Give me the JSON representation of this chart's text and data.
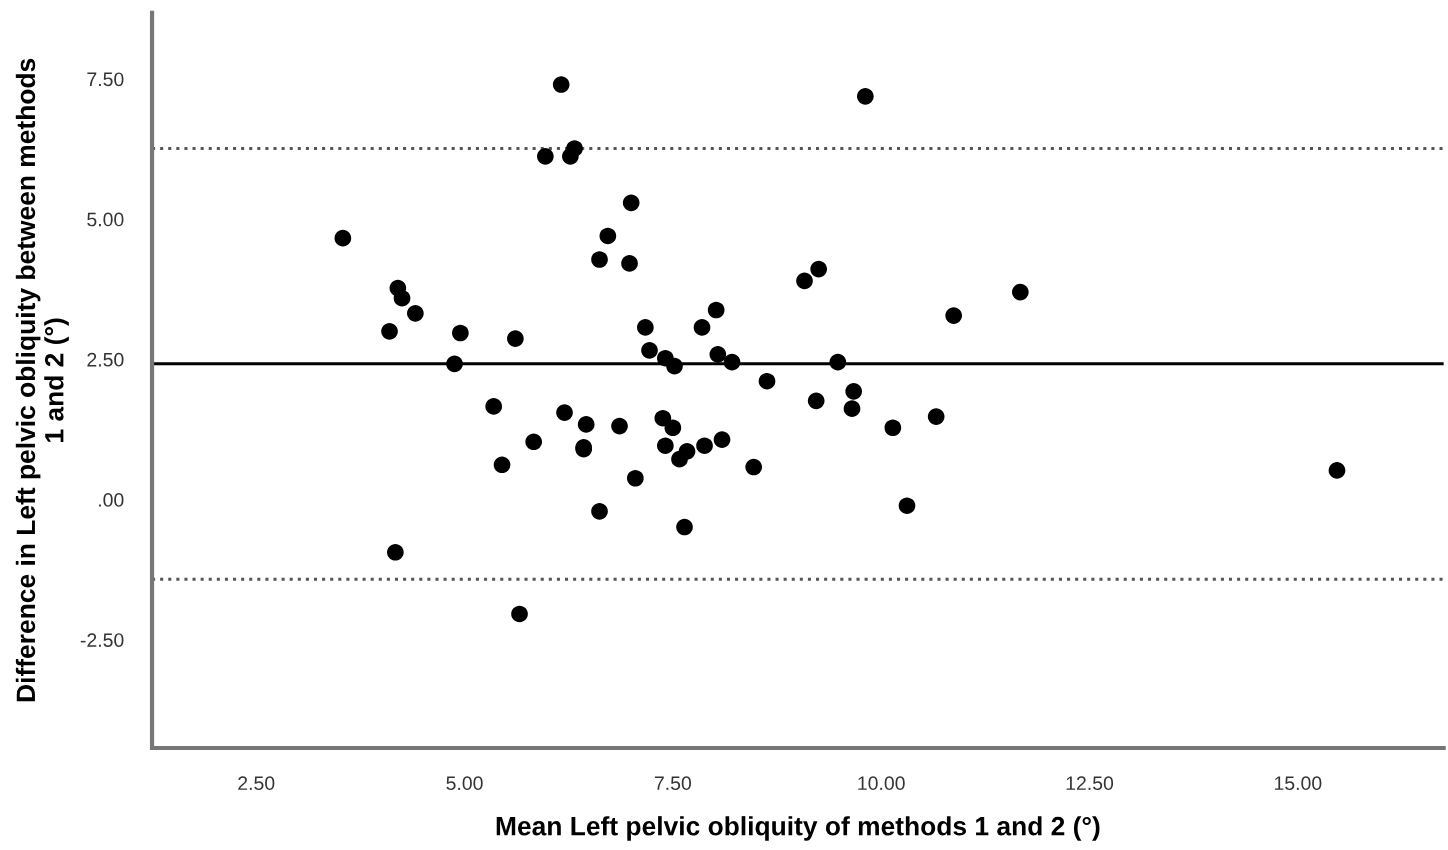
{
  "chart_data": {
    "type": "scatter",
    "xlabel": "Mean Left pelvic obliquity of methods 1 and 2 (°)",
    "ylabel": "Difference in Left pelvic obliquity between methods\n1 and 2 (°)",
    "xlim": [
      1.25,
      16.75
    ],
    "ylim": [
      -4.43,
      8.68
    ],
    "xticks": [
      {
        "value": 2.5,
        "label": "2.50"
      },
      {
        "value": 5,
        "label": "5.00"
      },
      {
        "value": 7.5,
        "label": "7.50"
      },
      {
        "value": 10,
        "label": "10.00"
      },
      {
        "value": 12.5,
        "label": "12.50"
      },
      {
        "value": 15,
        "label": "15.00"
      }
    ],
    "yticks": [
      {
        "value": -2.5,
        "label": "-2.50"
      },
      {
        "value": 0,
        "label": ".00"
      },
      {
        "value": 2.5,
        "label": "2.50"
      },
      {
        "value": 5,
        "label": "5.00"
      },
      {
        "value": 7.5,
        "label": "7.50"
      }
    ],
    "grid": false,
    "marker": "circle",
    "ref_lines": [
      {
        "axis": "y",
        "value": 2.42,
        "label": null,
        "color": "#000000",
        "line_style": "solid"
      },
      {
        "axis": "y",
        "value": 6.26,
        "label": null,
        "color": "#555555",
        "line_style": "dotted"
      },
      {
        "axis": "y",
        "value": -1.42,
        "label": null,
        "color": "#555555",
        "line_style": "dotted"
      }
    ],
    "series": [
      {
        "color": "#000000",
        "x": [
          3.54,
          4.2,
          4.25,
          4.41,
          4.1,
          4.95,
          4.88,
          5.61,
          4.17,
          5.35,
          5.45,
          5.66,
          5.83,
          6.16,
          5.97,
          6.27,
          6.32,
          6.2,
          6.46,
          6.43,
          6.43,
          6.62,
          6.62,
          6.72,
          7.0,
          6.98,
          6.86,
          7.05,
          7.17,
          7.22,
          7.41,
          7.52,
          7.38,
          7.5,
          7.41,
          7.58,
          7.67,
          7.64,
          7.88,
          7.85,
          8.02,
          8.04,
          8.21,
          8.09,
          8.63,
          8.47,
          9.08,
          9.25,
          9.81,
          9.48,
          9.22,
          9.67,
          9.65,
          10.14,
          10.31,
          10.66,
          10.87,
          11.67,
          15.47
        ],
        "values": [
          4.66,
          3.77,
          3.59,
          3.32,
          3.0,
          2.97,
          2.42,
          2.87,
          -0.94,
          1.66,
          0.62,
          -2.04,
          1.03,
          7.4,
          6.12,
          6.12,
          6.26,
          1.55,
          1.34,
          0.93,
          0.9,
          -0.21,
          4.28,
          4.7,
          5.29,
          4.21,
          1.31,
          0.38,
          3.07,
          2.66,
          2.52,
          2.38,
          1.45,
          1.28,
          0.96,
          0.72,
          0.86,
          -0.49,
          0.96,
          3.07,
          3.38,
          2.59,
          2.45,
          1.07,
          2.11,
          0.58,
          3.9,
          4.11,
          7.19,
          2.45,
          1.76,
          1.93,
          1.62,
          1.28,
          -0.11,
          1.48,
          3.28,
          3.7,
          0.52
        ]
      }
    ]
  }
}
